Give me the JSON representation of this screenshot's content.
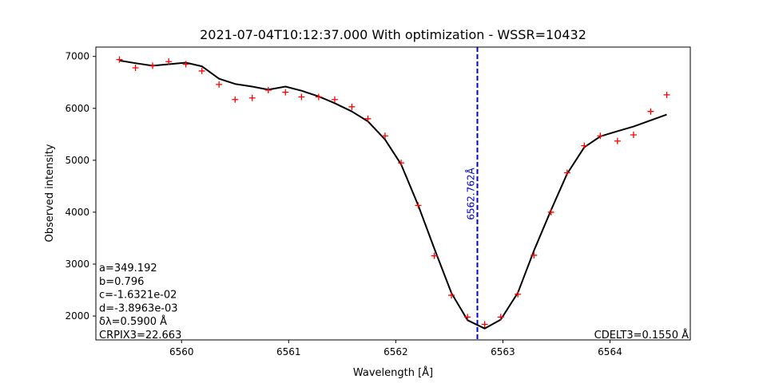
{
  "chart_data": {
    "type": "scatter",
    "title": "2021-07-04T10:12:37.000 With optimization - WSSR=10432",
    "xlabel": "Wavelength [Å]",
    "ylabel": "Observed intensity",
    "xlim": [
      6559.2,
      6564.75
    ],
    "ylim": [
      1540,
      7180
    ],
    "x_ticks": [
      6560,
      6561,
      6562,
      6563,
      6564
    ],
    "y_ticks": [
      2000,
      3000,
      4000,
      5000,
      6000,
      7000
    ],
    "grid": false,
    "series": [
      {
        "marker": "+",
        "color": "#ff0000",
        "x": [
          6559.42,
          6559.57,
          6559.73,
          6559.88,
          6560.04,
          6560.19,
          6560.35,
          6560.5,
          6560.66,
          6560.81,
          6560.97,
          6561.12,
          6561.28,
          6561.43,
          6561.59,
          6561.74,
          6561.9,
          6562.05,
          6562.21,
          6562.36,
          6562.52,
          6562.67,
          6562.83,
          6562.98,
          6563.14,
          6563.29,
          6563.45,
          6563.6,
          6563.76,
          6563.91,
          6564.07,
          6564.22,
          6564.38,
          6564.53
        ],
        "y": [
          6940,
          6780,
          6820,
          6900,
          6850,
          6720,
          6460,
          6170,
          6200,
          6350,
          6310,
          6220,
          6220,
          6170,
          6030,
          5800,
          5470,
          4950,
          4130,
          3160,
          2400,
          1980,
          1840,
          1980,
          2420,
          3170,
          4000,
          4760,
          5280,
          5470,
          5370,
          5490,
          5940,
          6260
        ]
      },
      {
        "line": "solid",
        "color": "#000000",
        "x": [
          6559.42,
          6559.57,
          6559.73,
          6559.88,
          6560.04,
          6560.19,
          6560.35,
          6560.5,
          6560.66,
          6560.81,
          6560.97,
          6561.12,
          6561.28,
          6561.43,
          6561.59,
          6561.74,
          6561.9,
          6562.05,
          6562.21,
          6562.36,
          6562.52,
          6562.67,
          6562.83,
          6562.98,
          6563.14,
          6563.29,
          6563.45,
          6563.6,
          6563.76,
          6563.91,
          6564.07,
          6564.22,
          6564.38,
          6564.53
        ],
        "y": [
          6920,
          6870,
          6820,
          6850,
          6880,
          6810,
          6570,
          6470,
          6420,
          6360,
          6420,
          6340,
          6230,
          6100,
          5940,
          5750,
          5400,
          4920,
          4130,
          3300,
          2440,
          1920,
          1760,
          1930,
          2450,
          3260,
          4040,
          4740,
          5250,
          5460,
          5560,
          5650,
          5770,
          5880
        ]
      }
    ],
    "vline": {
      "x": 6562.762,
      "color": "#0000cc",
      "style": "dashed",
      "label": "6562.762Å"
    },
    "annotations_left": [
      "a=349.192",
      "b=0.796",
      "c=-1.6321e-02",
      "d=-3.8963e-03",
      "δλ=0.5900 Å",
      "CRPIX3=22.663"
    ],
    "annotation_right": "CDELT3=0.1550 Å"
  }
}
